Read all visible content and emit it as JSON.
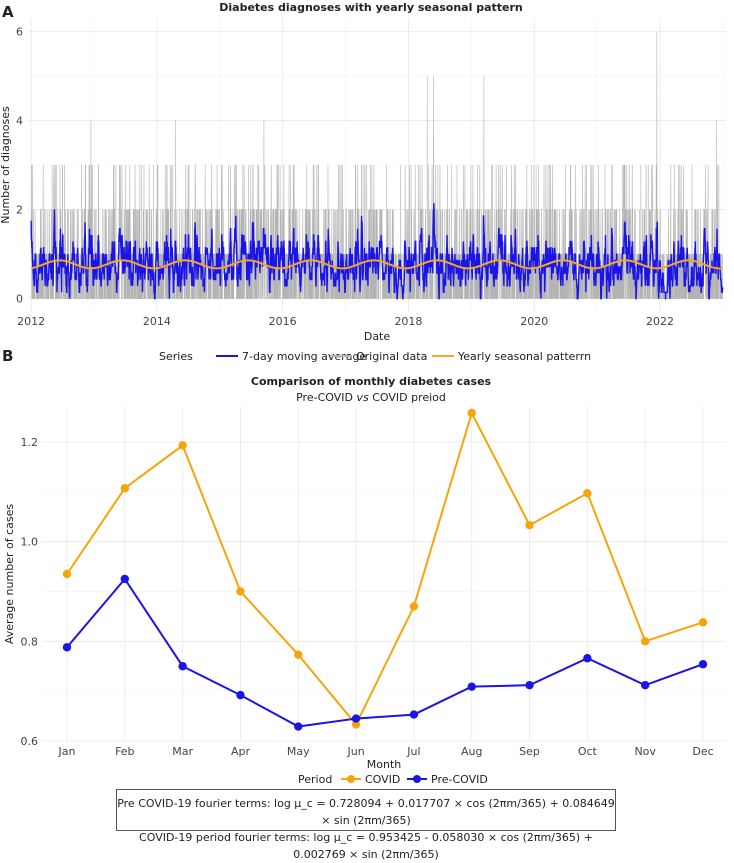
{
  "panel_a": {
    "letter": "A",
    "title": "Diabetes diagnoses with yearly seasonal pattern",
    "legend_title": "Series",
    "legend_items": [
      {
        "label": "7-day moving average",
        "color": "#1a14e6"
      },
      {
        "label": "Original data",
        "color": "#b3b3b3"
      },
      {
        "label": "Yearly seasonal patterrn",
        "color": "#f5a623"
      }
    ]
  },
  "panel_b": {
    "letter": "B",
    "title": "Comparison of monthly diabetes cases",
    "subtitle_pre": "Pre-COVID ",
    "subtitle_vs": "vs",
    "subtitle_post": " COVID preiod",
    "legend_title": "Period",
    "legend_items": [
      {
        "label": "COVID",
        "color": "#f5a50a"
      },
      {
        "label": "Pre-COVID",
        "color": "#1a14e6"
      }
    ]
  },
  "formula": {
    "line1": "Pre COVID-19 fourier terms: log μ_c = 0.728094 + 0.017707 × cos (2πm/365) + 0.084649 × sin (2πm/365)",
    "line2": "COVID-19 period fourier terms: log μ_c = 0.953425 - 0.058030 × cos (2πm/365) + 0.002769 × sin (2πm/365)"
  },
  "chart_data": [
    {
      "type": "line",
      "title": "Diabetes diagnoses with yearly seasonal pattern",
      "xlabel": "Date",
      "ylabel": "Number of diagnoses",
      "xlim": [
        2011.95,
        2023.05
      ],
      "ylim": [
        -0.3,
        6.3
      ],
      "x_ticks": [
        2012,
        2014,
        2016,
        2018,
        2020,
        2022
      ],
      "x_tick_labels": [
        "2012",
        "2014",
        "2016",
        "2018",
        "2020",
        "2022"
      ],
      "y_ticks": [
        0,
        2,
        4,
        6
      ],
      "y_tick_labels": [
        "0",
        "2",
        "4",
        "6"
      ],
      "series": [
        {
          "name": "Original data",
          "kind": "daily counts 0-6 (approximate, daily)",
          "color": "#b3b3b3",
          "notable_peaks": [
            {
              "x": 2012.95,
              "y": 4
            },
            {
              "x": 2014.3,
              "y": 4
            },
            {
              "x": 2015.7,
              "y": 4
            },
            {
              "x": 2018.3,
              "y": 5
            },
            {
              "x": 2018.4,
              "y": 5
            },
            {
              "x": 2019.2,
              "y": 5
            },
            {
              "x": 2021.95,
              "y": 6
            },
            {
              "x": 2022.9,
              "y": 4
            }
          ]
        },
        {
          "name": "7-day moving average",
          "kind": "rolling mean, fluctuates ~0 to ~2.1",
          "color": "#1a14e6",
          "max": 2.15
        },
        {
          "name": "Yearly seasonal patterrn",
          "kind": "sinusoid, mean 0.77, amplitude 0.09, period 1 year",
          "color": "#f5a623",
          "mean": 0.77,
          "amplitude": 0.09
        }
      ]
    },
    {
      "type": "line",
      "title": "Comparison of monthly diabetes cases",
      "subtitle": "Pre-COVID vs COVID preiod",
      "xlabel": "Month",
      "ylabel": "Average number of cases",
      "categories": [
        "Jan",
        "Feb",
        "Mar",
        "Apr",
        "May",
        "Jun",
        "Jul",
        "Aug",
        "Sep",
        "Oct",
        "Nov",
        "Dec"
      ],
      "ylim": [
        0.6,
        1.27
      ],
      "y_ticks": [
        0.6,
        0.8,
        1.0,
        1.2
      ],
      "y_tick_labels": [
        "0.6",
        "0.8",
        "1.0",
        "1.2"
      ],
      "series": [
        {
          "name": "COVID",
          "color": "#f5a50a",
          "values": [
            0.935,
            1.107,
            1.193,
            0.9,
            0.773,
            0.633,
            0.87,
            1.258,
            1.033,
            1.097,
            0.8,
            0.838
          ]
        },
        {
          "name": "Pre-COVID",
          "color": "#1a14e6",
          "values": [
            0.788,
            0.925,
            0.75,
            0.692,
            0.629,
            0.645,
            0.653,
            0.709,
            0.712,
            0.766,
            0.712,
            0.754
          ]
        }
      ]
    }
  ]
}
